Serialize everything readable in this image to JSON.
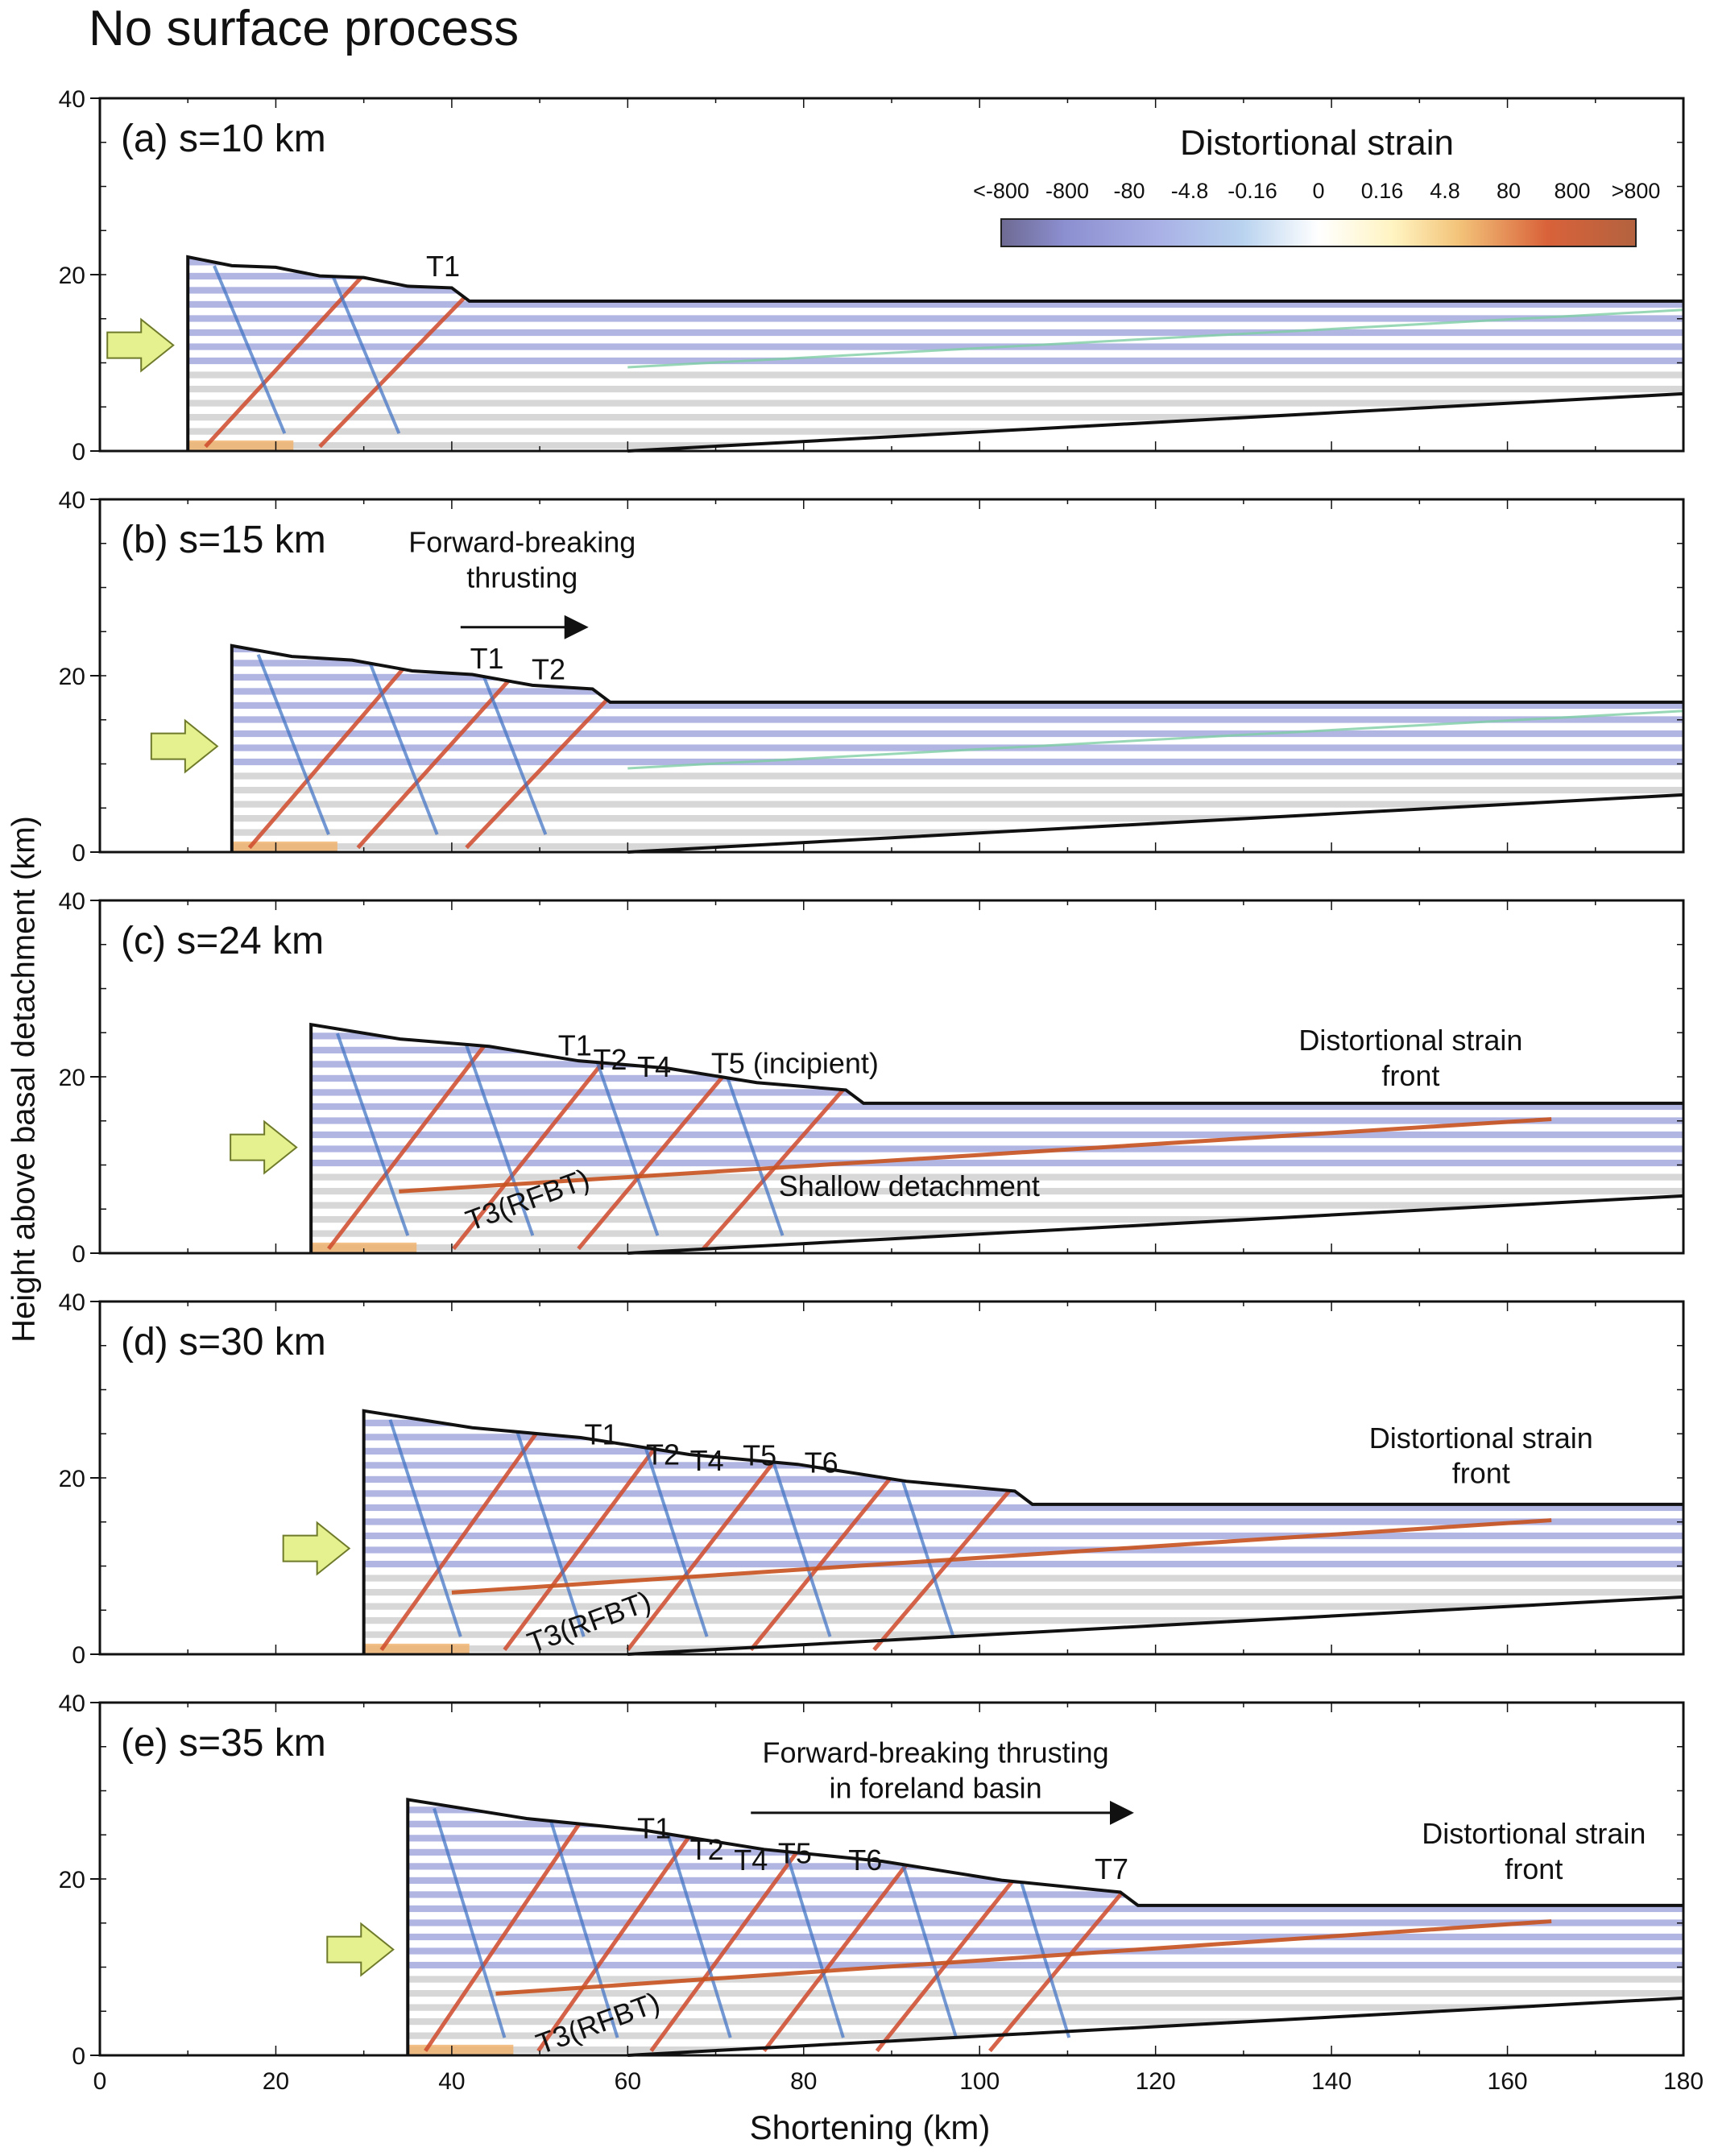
{
  "figure": {
    "title": "No surface process",
    "x_axis_label": "Shortening (km)",
    "y_axis_label": "Height above basal detachment (km)",
    "x_ticks": [
      "0",
      "20",
      "40",
      "60",
      "80",
      "100",
      "120",
      "140",
      "160",
      "180"
    ],
    "y_ticks": [
      "0",
      "20",
      "40"
    ]
  },
  "colorbar": {
    "title": "Distortional strain",
    "tick_labels": [
      "<-800",
      "-800",
      "-80",
      "-4.8",
      "-0.16",
      "0",
      "0.16",
      "4.8",
      "80",
      "800",
      ">800"
    ],
    "colors": [
      "#6e6a93",
      "#8c8fd0",
      "#a9b1e6",
      "#b9d3ef",
      "#ffffff",
      "#fff3c0",
      "#f3c47a",
      "#d9623a",
      "#b3623f"
    ]
  },
  "colors": {
    "compression": "#a3a8dd",
    "extension": "#cf4a2b",
    "strata_gray": "#c9c9c9",
    "push_arrow_fill": "#e5f08f",
    "push_arrow_stroke": "#6f7b2a"
  },
  "panels": [
    {
      "label": "(a)",
      "shortening": "s=10 km",
      "s_km": 10,
      "annotations": [
        {
          "text": "T1",
          "x": 39,
          "y": 19.8
        }
      ]
    },
    {
      "label": "(b)",
      "shortening": "s=15 km",
      "s_km": 15,
      "annotations": [
        {
          "text": "Forward-breaking",
          "x": 48,
          "y": 34
        },
        {
          "text": "thrusting",
          "x": 48,
          "y": 30
        },
        {
          "text": "T1",
          "x": 44,
          "y": 20.8
        },
        {
          "text": "T2",
          "x": 51,
          "y": 19.6
        }
      ],
      "direction_arrow": {
        "x1": 41,
        "x2": 55,
        "y": 25.5
      }
    },
    {
      "label": "(c)",
      "shortening": "s=24 km",
      "s_km": 24,
      "annotations": [
        {
          "text": "T1",
          "x": 54,
          "y": 22.4
        },
        {
          "text": "T2",
          "x": 58,
          "y": 20.8
        },
        {
          "text": "T4",
          "x": 63,
          "y": 20.0
        },
        {
          "text": "T5 (incipient)",
          "x": 79,
          "y": 20.4
        },
        {
          "text": "Distortional strain",
          "x": 149,
          "y": 23.0
        },
        {
          "text": "front",
          "x": 149,
          "y": 19.0
        },
        {
          "text": "Shallow detachment",
          "x": 92,
          "y": 6.5
        },
        {
          "text": "T3(RFBT)",
          "x": 49,
          "y": 5.0,
          "rotate": -20
        }
      ]
    },
    {
      "label": "(d)",
      "shortening": "s=30 km",
      "s_km": 30,
      "annotations": [
        {
          "text": "T1",
          "x": 57,
          "y": 23.8
        },
        {
          "text": "T2",
          "x": 64,
          "y": 21.5
        },
        {
          "text": "T4",
          "x": 69,
          "y": 20.8
        },
        {
          "text": "T5",
          "x": 75,
          "y": 21.4
        },
        {
          "text": "T6",
          "x": 82,
          "y": 20.6
        },
        {
          "text": "Distortional strain",
          "x": 157,
          "y": 23.4
        },
        {
          "text": "front",
          "x": 157,
          "y": 19.4
        },
        {
          "text": "T3(RFBT)",
          "x": 56,
          "y": 2.6,
          "rotate": -20
        }
      ]
    },
    {
      "label": "(e)",
      "shortening": "s=35 km",
      "s_km": 35,
      "annotations": [
        {
          "text": "Forward-breaking thrusting",
          "x": 95,
          "y": 33.2
        },
        {
          "text": "in foreland basin",
          "x": 95,
          "y": 29.2
        },
        {
          "text": "T1",
          "x": 63,
          "y": 24.6
        },
        {
          "text": "T2",
          "x": 69,
          "y": 22.2
        },
        {
          "text": "T4",
          "x": 74,
          "y": 21.0
        },
        {
          "text": "T5",
          "x": 79,
          "y": 21.8
        },
        {
          "text": "T6",
          "x": 87,
          "y": 21.0
        },
        {
          "text": "T7",
          "x": 115,
          "y": 20.0
        },
        {
          "text": "Distortional strain",
          "x": 163,
          "y": 24.0
        },
        {
          "text": "front",
          "x": 163,
          "y": 20.0
        },
        {
          "text": "T3(RFBT)",
          "x": 57,
          "y": 2.6,
          "rotate": -20
        }
      ],
      "direction_arrow": {
        "x1": 74,
        "x2": 117,
        "y": 27.5
      }
    }
  ]
}
